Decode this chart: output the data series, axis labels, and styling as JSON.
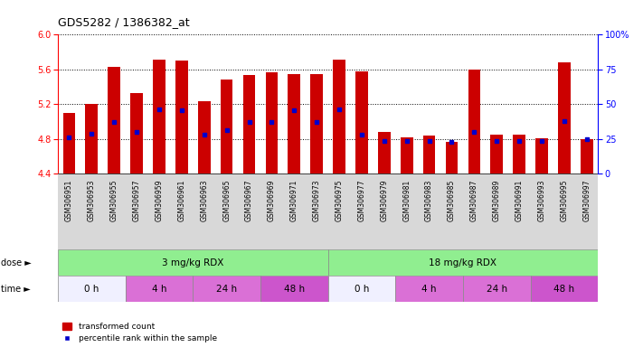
{
  "title": "GDS5282 / 1386382_at",
  "samples": [
    "GSM306951",
    "GSM306953",
    "GSM306955",
    "GSM306957",
    "GSM306959",
    "GSM306961",
    "GSM306963",
    "GSM306965",
    "GSM306967",
    "GSM306969",
    "GSM306971",
    "GSM306973",
    "GSM306975",
    "GSM306977",
    "GSM306979",
    "GSM306981",
    "GSM306983",
    "GSM306985",
    "GSM306987",
    "GSM306989",
    "GSM306991",
    "GSM306993",
    "GSM306995",
    "GSM306997"
  ],
  "bar_values": [
    5.1,
    5.2,
    5.63,
    5.33,
    5.71,
    5.7,
    5.23,
    5.48,
    5.54,
    5.57,
    5.55,
    5.55,
    5.71,
    5.58,
    4.88,
    4.82,
    4.84,
    4.76,
    5.6,
    4.85,
    4.85,
    4.81,
    5.68,
    4.8
  ],
  "percentile_values": [
    4.82,
    4.86,
    4.99,
    4.88,
    5.14,
    5.13,
    4.85,
    4.9,
    4.99,
    4.99,
    5.13,
    4.99,
    5.14,
    4.85,
    4.77,
    4.77,
    4.77,
    4.76,
    4.88,
    4.77,
    4.77,
    4.77,
    5.0,
    4.8
  ],
  "ylim": [
    4.4,
    6.0
  ],
  "yticks": [
    4.4,
    4.8,
    5.2,
    5.6,
    6.0
  ],
  "bar_color": "#cc0000",
  "dot_color": "#0000cc",
  "dose_color": "#90ee90",
  "time_data": [
    {
      "start": 0,
      "end": 3,
      "label": "0 h",
      "color": "#f0f0ff"
    },
    {
      "start": 3,
      "end": 6,
      "label": "4 h",
      "color": "#da70d6"
    },
    {
      "start": 6,
      "end": 9,
      "label": "24 h",
      "color": "#da70d6"
    },
    {
      "start": 9,
      "end": 12,
      "label": "48 h",
      "color": "#cc55cc"
    },
    {
      "start": 12,
      "end": 15,
      "label": "0 h",
      "color": "#f0f0ff"
    },
    {
      "start": 15,
      "end": 18,
      "label": "4 h",
      "color": "#da70d6"
    },
    {
      "start": 18,
      "end": 21,
      "label": "24 h",
      "color": "#da70d6"
    },
    {
      "start": 21,
      "end": 24,
      "label": "48 h",
      "color": "#cc55cc"
    }
  ],
  "legend_red": "transformed count",
  "legend_blue": "percentile rank within the sample"
}
